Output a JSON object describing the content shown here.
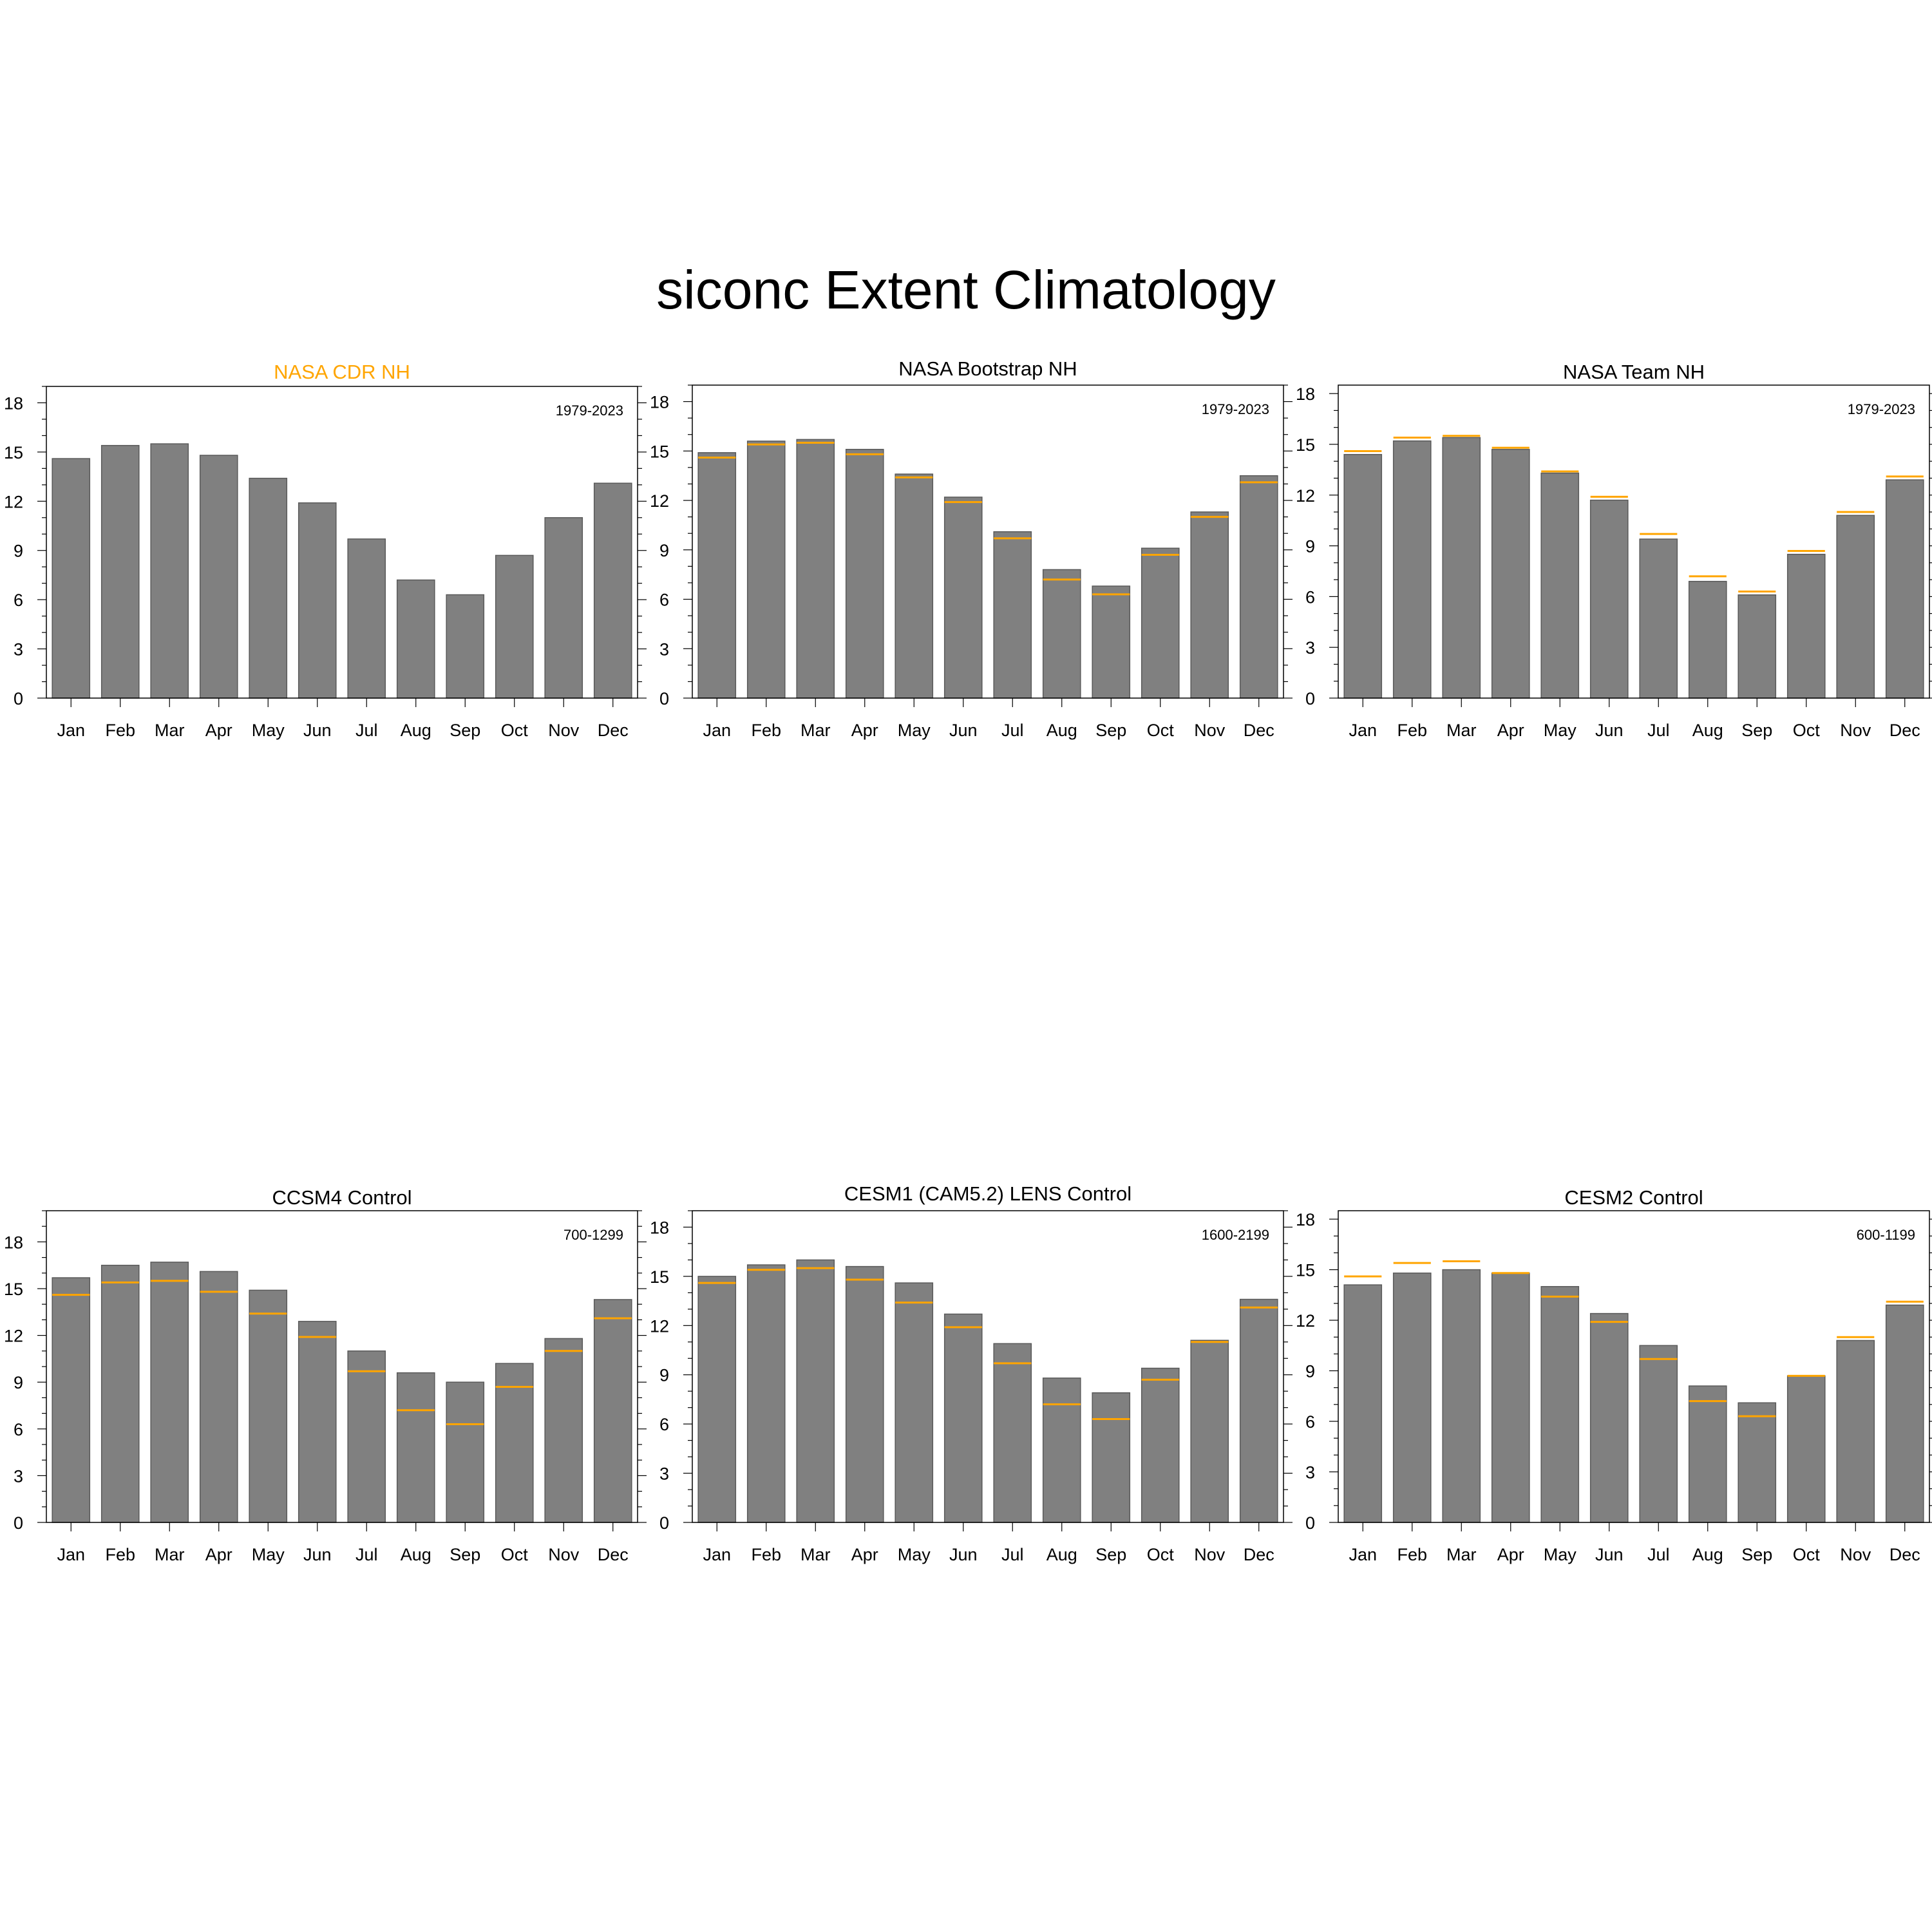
{
  "title": "siconc Extent Climatology",
  "colors": {
    "bar": "#808080",
    "bar_edge": "#5a5a5a",
    "reference": "#ffa500",
    "axis": "#000000",
    "highlight_title": "#ffa500"
  },
  "chart_data": [
    {
      "type": "bar",
      "title": "NASA CDR NH",
      "title_color": "#ffa500",
      "period": "1979-2023",
      "categories": [
        "Jan",
        "Feb",
        "Mar",
        "Apr",
        "May",
        "Jun",
        "Jul",
        "Aug",
        "Sep",
        "Oct",
        "Nov",
        "Dec"
      ],
      "values": [
        14.6,
        15.4,
        15.5,
        14.8,
        13.4,
        11.9,
        9.7,
        7.2,
        6.3,
        8.7,
        11.0,
        13.1
      ],
      "reference": null,
      "ylim": [
        0,
        19
      ],
      "yticks": [
        0,
        3,
        6,
        9,
        12,
        15,
        18
      ]
    },
    {
      "type": "bar",
      "title": "NASA Bootstrap NH",
      "title_color": "#000000",
      "period": "1979-2023",
      "categories": [
        "Jan",
        "Feb",
        "Mar",
        "Apr",
        "May",
        "Jun",
        "Jul",
        "Aug",
        "Sep",
        "Oct",
        "Nov",
        "Dec"
      ],
      "values": [
        14.9,
        15.6,
        15.7,
        15.1,
        13.6,
        12.2,
        10.1,
        7.8,
        6.8,
        9.1,
        11.3,
        13.5
      ],
      "reference": [
        14.6,
        15.4,
        15.5,
        14.8,
        13.4,
        11.9,
        9.7,
        7.2,
        6.3,
        8.7,
        11.0,
        13.1
      ],
      "ylim": [
        0,
        19
      ],
      "yticks": [
        0,
        3,
        6,
        9,
        12,
        15,
        18
      ]
    },
    {
      "type": "bar",
      "title": "NASA Team NH",
      "title_color": "#000000",
      "period": "1979-2023",
      "categories": [
        "Jan",
        "Feb",
        "Mar",
        "Apr",
        "May",
        "Jun",
        "Jul",
        "Aug",
        "Sep",
        "Oct",
        "Nov",
        "Dec"
      ],
      "values": [
        14.4,
        15.2,
        15.4,
        14.7,
        13.3,
        11.7,
        9.4,
        6.9,
        6.1,
        8.5,
        10.8,
        12.9
      ],
      "reference": [
        14.6,
        15.4,
        15.5,
        14.8,
        13.4,
        11.9,
        9.7,
        7.2,
        6.3,
        8.7,
        11.0,
        13.1
      ],
      "ylim": [
        0,
        18.5
      ],
      "yticks": [
        0,
        3,
        6,
        9,
        12,
        15,
        18
      ]
    },
    {
      "type": "bar",
      "title": "CCSM4 Control",
      "title_color": "#000000",
      "period": "700-1299",
      "categories": [
        "Jan",
        "Feb",
        "Mar",
        "Apr",
        "May",
        "Jun",
        "Jul",
        "Aug",
        "Sep",
        "Oct",
        "Nov",
        "Dec"
      ],
      "values": [
        15.7,
        16.5,
        16.7,
        16.1,
        14.9,
        12.9,
        11.0,
        9.6,
        9.0,
        10.2,
        11.8,
        14.3
      ],
      "reference": [
        14.6,
        15.4,
        15.5,
        14.8,
        13.4,
        11.9,
        9.7,
        7.2,
        6.3,
        8.7,
        11.0,
        13.1
      ],
      "ylim": [
        0,
        20
      ],
      "yticks": [
        0,
        3,
        6,
        9,
        12,
        15,
        18
      ]
    },
    {
      "type": "bar",
      "title": "CESM1 (CAM5.2) LENS Control",
      "title_color": "#000000",
      "period": "1600-2199",
      "categories": [
        "Jan",
        "Feb",
        "Mar",
        "Apr",
        "May",
        "Jun",
        "Jul",
        "Aug",
        "Sep",
        "Oct",
        "Nov",
        "Dec"
      ],
      "values": [
        15.0,
        15.7,
        16.0,
        15.6,
        14.6,
        12.7,
        10.9,
        8.8,
        7.9,
        9.4,
        11.1,
        13.6
      ],
      "reference": [
        14.6,
        15.4,
        15.5,
        14.8,
        13.4,
        11.9,
        9.7,
        7.2,
        6.3,
        8.7,
        11.0,
        13.1
      ],
      "ylim": [
        0,
        19
      ],
      "yticks": [
        0,
        3,
        6,
        9,
        12,
        15,
        18
      ]
    },
    {
      "type": "bar",
      "title": "CESM2 Control",
      "title_color": "#000000",
      "period": "600-1199",
      "categories": [
        "Jan",
        "Feb",
        "Mar",
        "Apr",
        "May",
        "Jun",
        "Jul",
        "Aug",
        "Sep",
        "Oct",
        "Nov",
        "Dec"
      ],
      "values": [
        14.1,
        14.8,
        15.0,
        14.8,
        14.0,
        12.4,
        10.5,
        8.1,
        7.1,
        8.7,
        10.8,
        12.9
      ],
      "reference": [
        14.6,
        15.4,
        15.5,
        14.8,
        13.4,
        11.9,
        9.7,
        7.2,
        6.3,
        8.7,
        11.0,
        13.1
      ],
      "ylim": [
        0,
        18.5
      ],
      "yticks": [
        0,
        3,
        6,
        9,
        12,
        15,
        18
      ]
    }
  ]
}
